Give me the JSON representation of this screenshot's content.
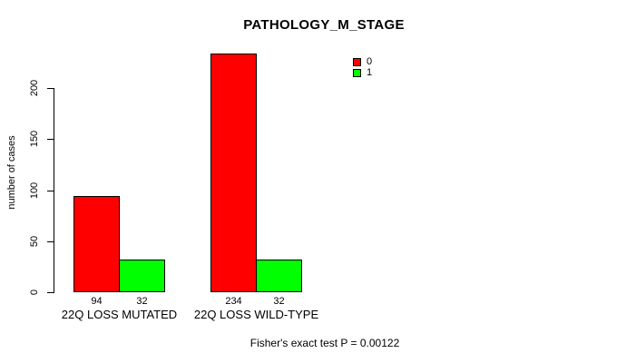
{
  "chart_data": {
    "type": "bar",
    "title": "PATHOLOGY_M_STAGE",
    "ylabel": "number of cases",
    "xlabel": "",
    "categories": [
      "22Q LOSS MUTATED",
      "22Q LOSS WILD-TYPE"
    ],
    "series": [
      {
        "name": "0",
        "color": "#ff0000",
        "values": [
          94,
          234
        ]
      },
      {
        "name": "1",
        "color": "#00ff00",
        "values": [
          32,
          32
        ]
      }
    ],
    "yticks": [
      0,
      50,
      100,
      150,
      200
    ],
    "ylim": [
      0,
      240
    ],
    "grid": false,
    "legend_position": "top-right",
    "footer": "Fisher's exact test P = 0.00122"
  }
}
